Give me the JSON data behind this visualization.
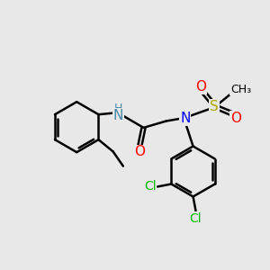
{
  "bg_color": "#e8e8e8",
  "bond_color": "#000000",
  "bond_width": 1.8,
  "atom_colors": {
    "N": "#0000ff",
    "NH": "#4488aa",
    "H": "#4488aa",
    "O": "#ff0000",
    "S": "#aaaa00",
    "Cl": "#00bb00",
    "C": "#000000"
  },
  "font_size": 10,
  "fig_bg": "#e8e8e8"
}
